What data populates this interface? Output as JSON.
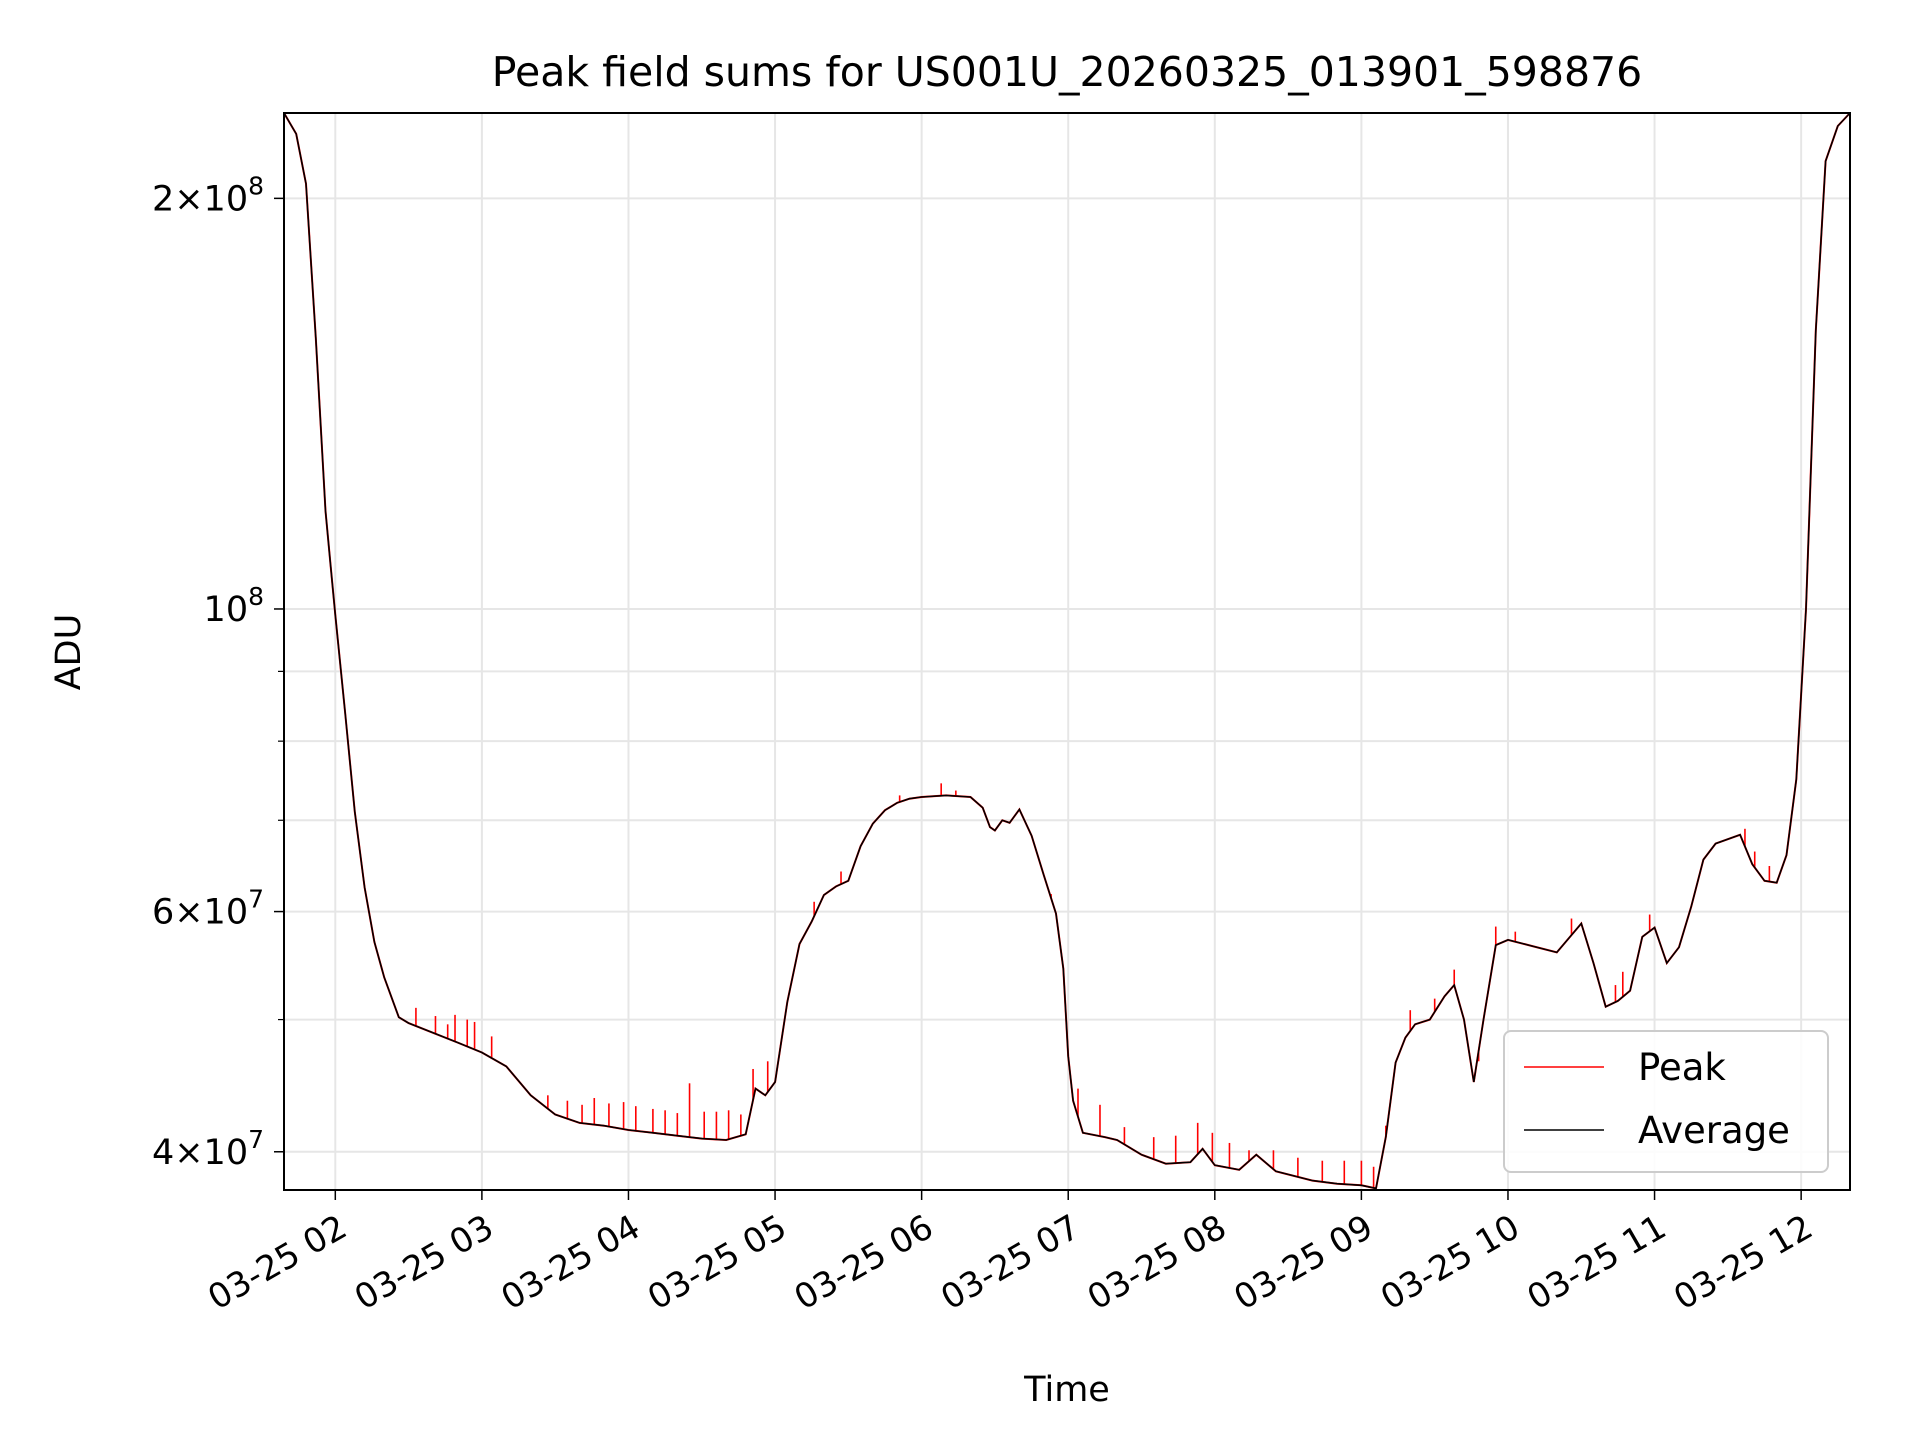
{
  "chart_data": {
    "type": "line",
    "title": "Peak field sums for US001U_20260325_013901_598876",
    "xlabel": "Time",
    "ylabel": "ADU",
    "x_axis": "time",
    "xlim": [
      "03-25 01:39",
      "03-25 12:20"
    ],
    "ylim": [
      37500000,
      231000000
    ],
    "y_scale": "log",
    "grid": true,
    "legend_position": "lower-right",
    "x_ticks": [
      "03-25 02",
      "03-25 03",
      "03-25 04",
      "03-25 05",
      "03-25 06",
      "03-25 07",
      "03-25 08",
      "03-25 09",
      "03-25 10",
      "03-25 11",
      "03-25 12"
    ],
    "y_ticks": [
      {
        "value": 40000000,
        "base": "4",
        "exp": "7"
      },
      {
        "value": 60000000,
        "base": "6",
        "exp": "7"
      },
      {
        "value": 100000000,
        "base": "",
        "exp": "8"
      },
      {
        "value": 200000000,
        "base": "2",
        "exp": "8"
      }
    ],
    "y_minor_ticks": [
      50000000,
      70000000,
      80000000,
      90000000
    ],
    "series": [
      {
        "name": "Average",
        "color": "#000000",
        "points": [
          [
            "03-25 01:39",
            231000000
          ],
          [
            "03-25 01:44",
            223000000
          ],
          [
            "03-25 01:48",
            205000000
          ],
          [
            "03-25 01:52",
            158000000
          ],
          [
            "03-25 01:56",
            118000000
          ],
          [
            "03-25 01:58",
            108000000
          ],
          [
            "03-25 02:00",
            99000000
          ],
          [
            "03-25 02:04",
            84000000
          ],
          [
            "03-25 02:08",
            71000000
          ],
          [
            "03-25 02:12",
            62500000
          ],
          [
            "03-25 02:16",
            57000000
          ],
          [
            "03-25 02:20",
            53700000
          ],
          [
            "03-25 02:26",
            50200000
          ],
          [
            "03-25 02:30",
            49700000
          ],
          [
            "03-25 02:40",
            48900000
          ],
          [
            "03-25 02:50",
            48100000
          ],
          [
            "03-25 03:00",
            47300000
          ],
          [
            "03-25 03:10",
            46200000
          ],
          [
            "03-25 03:20",
            44000000
          ],
          [
            "03-25 03:30",
            42600000
          ],
          [
            "03-25 03:40",
            42000000
          ],
          [
            "03-25 03:50",
            41800000
          ],
          [
            "03-25 04:00",
            41500000
          ],
          [
            "03-25 04:10",
            41300000
          ],
          [
            "03-25 04:20",
            41100000
          ],
          [
            "03-25 04:30",
            40900000
          ],
          [
            "03-25 04:40",
            40800000
          ],
          [
            "03-25 04:48",
            41200000
          ],
          [
            "03-25 04:52",
            44500000
          ],
          [
            "03-25 04:56",
            44000000
          ],
          [
            "03-25 05:00",
            45000000
          ],
          [
            "03-25 05:05",
            51500000
          ],
          [
            "03-25 05:10",
            56800000
          ],
          [
            "03-25 05:15",
            59000000
          ],
          [
            "03-25 05:20",
            61700000
          ],
          [
            "03-25 05:25",
            62600000
          ],
          [
            "03-25 05:30",
            63200000
          ],
          [
            "03-25 05:35",
            67000000
          ],
          [
            "03-25 05:40",
            69600000
          ],
          [
            "03-25 05:45",
            71200000
          ],
          [
            "03-25 05:50",
            72100000
          ],
          [
            "03-25 05:55",
            72600000
          ],
          [
            "03-25 06:00",
            72800000
          ],
          [
            "03-25 06:10",
            73000000
          ],
          [
            "03-25 06:20",
            72800000
          ],
          [
            "03-25 06:25",
            71500000
          ],
          [
            "03-25 06:28",
            69200000
          ],
          [
            "03-25 06:30",
            68800000
          ],
          [
            "03-25 06:33",
            70000000
          ],
          [
            "03-25 06:36",
            69700000
          ],
          [
            "03-25 06:40",
            71300000
          ],
          [
            "03-25 06:45",
            68200000
          ],
          [
            "03-25 06:50",
            63800000
          ],
          [
            "03-25 06:55",
            59800000
          ],
          [
            "03-25 06:58",
            54500000
          ],
          [
            "03-25 07:00",
            47000000
          ],
          [
            "03-25 07:02",
            43600000
          ],
          [
            "03-25 07:06",
            41300000
          ],
          [
            "03-25 07:15",
            41000000
          ],
          [
            "03-25 07:20",
            40800000
          ],
          [
            "03-25 07:30",
            39800000
          ],
          [
            "03-25 07:40",
            39200000
          ],
          [
            "03-25 07:50",
            39300000
          ],
          [
            "03-25 07:55",
            40200000
          ],
          [
            "03-25 08:00",
            39100000
          ],
          [
            "03-25 08:10",
            38800000
          ],
          [
            "03-25 08:17",
            39800000
          ],
          [
            "03-25 08:25",
            38700000
          ],
          [
            "03-25 08:40",
            38100000
          ],
          [
            "03-25 08:50",
            37900000
          ],
          [
            "03-25 09:00",
            37800000
          ],
          [
            "03-25 09:06",
            37600000
          ],
          [
            "03-25 09:10",
            41000000
          ],
          [
            "03-25 09:14",
            46500000
          ],
          [
            "03-25 09:18",
            48500000
          ],
          [
            "03-25 09:22",
            49600000
          ],
          [
            "03-25 09:28",
            50000000
          ],
          [
            "03-25 09:34",
            52000000
          ],
          [
            "03-25 09:38",
            53000000
          ],
          [
            "03-25 09:42",
            50000000
          ],
          [
            "03-25 09:46",
            45000000
          ],
          [
            "03-25 09:50",
            50000000
          ],
          [
            "03-25 09:55",
            56700000
          ],
          [
            "03-25 10:00",
            57200000
          ],
          [
            "03-25 10:10",
            56600000
          ],
          [
            "03-25 10:20",
            56000000
          ],
          [
            "03-25 10:30",
            58800000
          ],
          [
            "03-25 10:35",
            55000000
          ],
          [
            "03-25 10:40",
            51100000
          ],
          [
            "03-25 10:45",
            51600000
          ],
          [
            "03-25 10:50",
            52500000
          ],
          [
            "03-25 10:55",
            57500000
          ],
          [
            "03-25 11:00",
            58400000
          ],
          [
            "03-25 11:05",
            55000000
          ],
          [
            "03-25 11:10",
            56500000
          ],
          [
            "03-25 11:15",
            60500000
          ],
          [
            "03-25 11:20",
            65500000
          ],
          [
            "03-25 11:25",
            67300000
          ],
          [
            "03-25 11:35",
            68300000
          ],
          [
            "03-25 11:40",
            65000000
          ],
          [
            "03-25 11:45",
            63200000
          ],
          [
            "03-25 11:50",
            63000000
          ],
          [
            "03-25 11:54",
            66000000
          ],
          [
            "03-25 11:58",
            75000000
          ],
          [
            "03-25 12:02",
            100000000
          ],
          [
            "03-25 12:06",
            160000000
          ],
          [
            "03-25 12:10",
            213000000
          ],
          [
            "03-25 12:15",
            226000000
          ],
          [
            "03-25 12:20",
            231000000
          ]
        ]
      },
      {
        "name": "Peak",
        "color": "#ff0000",
        "description": "tracks Average with upward spikes",
        "spikes": [
          [
            "03-25 02:33",
            51000000
          ],
          [
            "03-25 02:41",
            50300000
          ],
          [
            "03-25 02:46",
            49600000
          ],
          [
            "03-25 02:49",
            50400000
          ],
          [
            "03-25 02:54",
            50000000
          ],
          [
            "03-25 02:57",
            49800000
          ],
          [
            "03-25 03:04",
            48600000
          ],
          [
            "03-25 03:27",
            44000000
          ],
          [
            "03-25 03:35",
            43600000
          ],
          [
            "03-25 03:41",
            43300000
          ],
          [
            "03-25 03:46",
            43800000
          ],
          [
            "03-25 03:52",
            43400000
          ],
          [
            "03-25 03:58",
            43500000
          ],
          [
            "03-25 04:03",
            43200000
          ],
          [
            "03-25 04:10",
            43000000
          ],
          [
            "03-25 04:15",
            42900000
          ],
          [
            "03-25 04:20",
            42700000
          ],
          [
            "03-25 04:25",
            44900000
          ],
          [
            "03-25 04:31",
            42800000
          ],
          [
            "03-25 04:36",
            42800000
          ],
          [
            "03-25 04:41",
            42900000
          ],
          [
            "03-25 04:46",
            42600000
          ],
          [
            "03-25 04:51",
            46000000
          ],
          [
            "03-25 04:57",
            46600000
          ],
          [
            "03-25 05:16",
            61000000
          ],
          [
            "03-25 05:27",
            64200000
          ],
          [
            "03-25 05:51",
            73000000
          ],
          [
            "03-25 06:08",
            74500000
          ],
          [
            "03-25 06:14",
            73600000
          ],
          [
            "03-25 06:53",
            61800000
          ],
          [
            "03-25 07:04",
            44500000
          ],
          [
            "03-25 07:13",
            43300000
          ],
          [
            "03-25 07:23",
            41700000
          ],
          [
            "03-25 07:35",
            41000000
          ],
          [
            "03-25 07:44",
            41100000
          ],
          [
            "03-25 07:53",
            42000000
          ],
          [
            "03-25 07:59",
            41300000
          ],
          [
            "03-25 08:06",
            40600000
          ],
          [
            "03-25 08:14",
            40100000
          ],
          [
            "03-25 08:24",
            40100000
          ],
          [
            "03-25 08:34",
            39600000
          ],
          [
            "03-25 08:44",
            39400000
          ],
          [
            "03-25 08:53",
            39400000
          ],
          [
            "03-25 09:00",
            39400000
          ],
          [
            "03-25 09:05",
            39000000
          ],
          [
            "03-25 09:10",
            41800000
          ],
          [
            "03-25 09:20",
            50800000
          ],
          [
            "03-25 09:30",
            51800000
          ],
          [
            "03-25 09:38",
            54400000
          ],
          [
            "03-25 09:48",
            46600000
          ],
          [
            "03-25 09:55",
            58500000
          ],
          [
            "03-25 10:03",
            58000000
          ],
          [
            "03-25 10:26",
            59300000
          ],
          [
            "03-25 10:44",
            53000000
          ],
          [
            "03-25 10:47",
            54200000
          ],
          [
            "03-25 10:58",
            59700000
          ],
          [
            "03-25 11:37",
            69000000
          ],
          [
            "03-25 11:41",
            66400000
          ],
          [
            "03-25 11:47",
            64800000
          ]
        ]
      }
    ]
  }
}
